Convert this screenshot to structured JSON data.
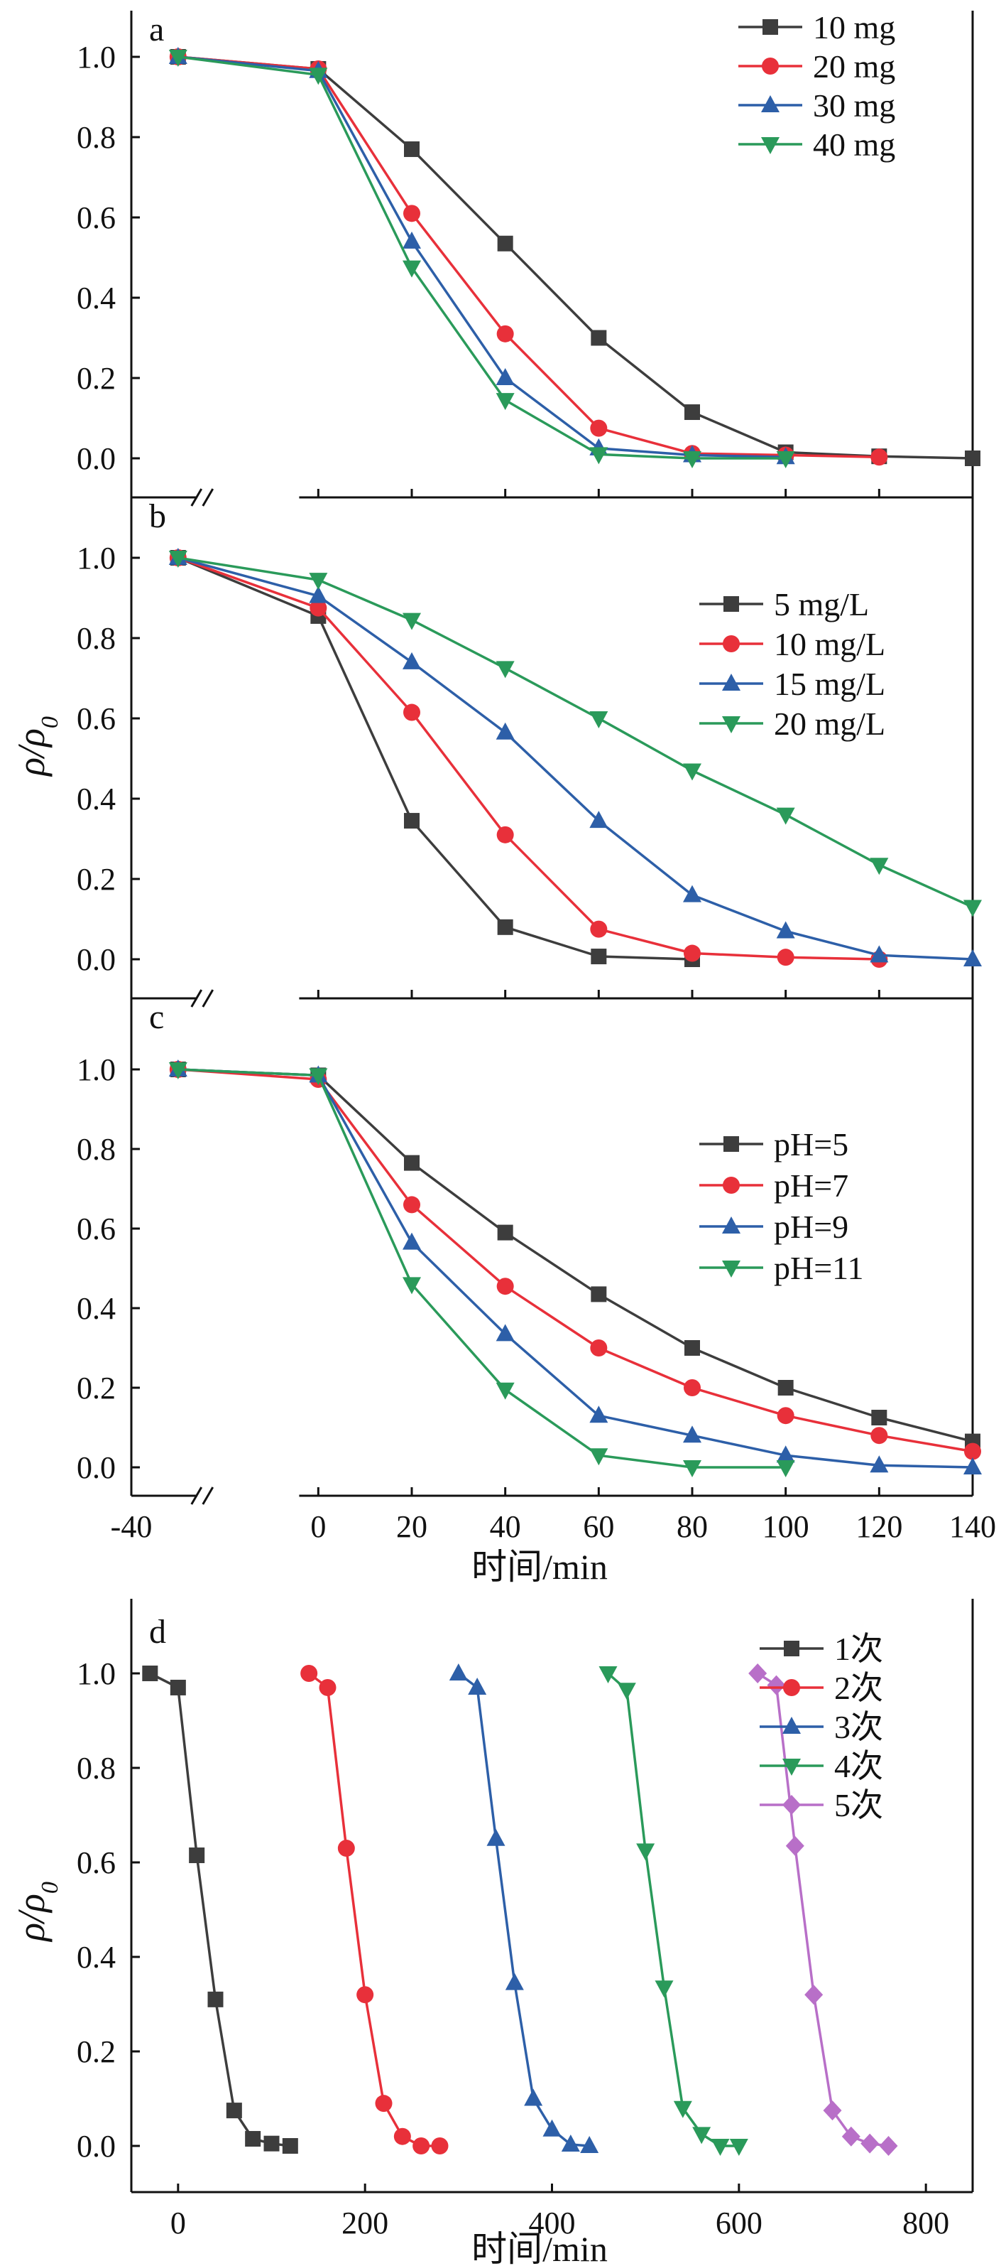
{
  "figure": {
    "shared_xlabel": "时间/min",
    "ylabel_bd": "ρ/ρ",
    "ylabel_subscript": "0"
  },
  "chart_data": [
    {
      "panel": "a",
      "type": "line",
      "ylim": [
        -0.1,
        1.1
      ],
      "xlim": [
        -40,
        140
      ],
      "x_axis_break": [
        -25,
        -5
      ],
      "y_ticks": [
        "0.0",
        "0.2",
        "0.4",
        "0.6",
        "0.8",
        "1.0"
      ],
      "legend_position": "top-right",
      "series": [
        {
          "name": "10 mg",
          "color": "#3d3d3d",
          "marker": "square",
          "x": [
            -30,
            0,
            20,
            40,
            60,
            80,
            100,
            120,
            140
          ],
          "y": [
            1.0,
            0.97,
            0.77,
            0.535,
            0.3,
            0.115,
            0.015,
            0.005,
            0.0
          ]
        },
        {
          "name": "20 mg",
          "color": "#e8303a",
          "marker": "circle",
          "x": [
            -30,
            0,
            20,
            40,
            60,
            80,
            100,
            120
          ],
          "y": [
            1.0,
            0.97,
            0.61,
            0.31,
            0.075,
            0.012,
            0.008,
            0.003
          ]
        },
        {
          "name": "30 mg",
          "color": "#2d5fa8",
          "marker": "triangle-up",
          "x": [
            -30,
            0,
            20,
            40,
            60,
            80,
            100
          ],
          "y": [
            1.0,
            0.965,
            0.54,
            0.2,
            0.025,
            0.008,
            0.003
          ]
        },
        {
          "name": "40 mg",
          "color": "#2a9a5a",
          "marker": "triangle-down",
          "x": [
            -30,
            0,
            20,
            40,
            60,
            80,
            100
          ],
          "y": [
            1.0,
            0.955,
            0.475,
            0.145,
            0.01,
            0.0,
            0.0
          ]
        }
      ]
    },
    {
      "panel": "b",
      "type": "line",
      "ylim": [
        -0.1,
        1.1
      ],
      "xlim": [
        -40,
        140
      ],
      "x_axis_break": [
        -25,
        -5
      ],
      "y_ticks": [
        "0.0",
        "0.2",
        "0.4",
        "0.6",
        "0.8",
        "1.0"
      ],
      "legend_position": "right",
      "series": [
        {
          "name": "5 mg/L",
          "color": "#3d3d3d",
          "marker": "square",
          "x": [
            -30,
            0,
            20,
            40,
            60,
            80
          ],
          "y": [
            1.0,
            0.855,
            0.345,
            0.08,
            0.007,
            0.0
          ]
        },
        {
          "name": "10 mg/L",
          "color": "#e8303a",
          "marker": "circle",
          "x": [
            -30,
            0,
            20,
            40,
            60,
            80,
            100,
            120
          ],
          "y": [
            1.0,
            0.875,
            0.615,
            0.31,
            0.075,
            0.015,
            0.005,
            0.0
          ]
        },
        {
          "name": "15 mg/L",
          "color": "#2d5fa8",
          "marker": "triangle-up",
          "x": [
            -30,
            0,
            20,
            40,
            60,
            80,
            100,
            120,
            140
          ],
          "y": [
            1.0,
            0.905,
            0.74,
            0.565,
            0.345,
            0.16,
            0.07,
            0.01,
            0.0
          ]
        },
        {
          "name": "20 mg/L",
          "color": "#2a9a5a",
          "marker": "triangle-down",
          "x": [
            -30,
            0,
            20,
            40,
            60,
            80,
            100,
            120,
            140
          ],
          "y": [
            1.0,
            0.945,
            0.845,
            0.725,
            0.6,
            0.47,
            0.36,
            0.235,
            0.13
          ]
        }
      ]
    },
    {
      "panel": "c",
      "type": "line",
      "ylim": [
        -0.1,
        1.1
      ],
      "xlim": [
        -40,
        140
      ],
      "x_axis_break": [
        -25,
        -5
      ],
      "x_ticks": [
        "-40",
        "0",
        "20",
        "40",
        "60",
        "80",
        "100",
        "120",
        "140"
      ],
      "y_ticks": [
        "0.0",
        "0.2",
        "0.4",
        "0.6",
        "0.8",
        "1.0"
      ],
      "legend_position": "right",
      "series": [
        {
          "name": "pH=5",
          "color": "#3d3d3d",
          "marker": "square",
          "x": [
            -30,
            0,
            20,
            40,
            60,
            80,
            100,
            120,
            140
          ],
          "y": [
            1.0,
            0.985,
            0.765,
            0.59,
            0.435,
            0.3,
            0.2,
            0.125,
            0.065
          ]
        },
        {
          "name": "pH=7",
          "color": "#e8303a",
          "marker": "circle",
          "x": [
            -30,
            0,
            20,
            40,
            60,
            80,
            100,
            120,
            140
          ],
          "y": [
            1.0,
            0.975,
            0.66,
            0.455,
            0.3,
            0.2,
            0.13,
            0.08,
            0.04
          ]
        },
        {
          "name": "pH=9",
          "color": "#2d5fa8",
          "marker": "triangle-up",
          "x": [
            -30,
            0,
            20,
            40,
            60,
            80,
            100,
            120,
            140
          ],
          "y": [
            1.0,
            0.985,
            0.565,
            0.335,
            0.13,
            0.08,
            0.03,
            0.005,
            0.0
          ]
        },
        {
          "name": "pH=11",
          "color": "#2a9a5a",
          "marker": "triangle-down",
          "x": [
            -30,
            0,
            20,
            40,
            60,
            80,
            100
          ],
          "y": [
            1.0,
            0.985,
            0.46,
            0.195,
            0.03,
            0.0,
            0.0
          ]
        }
      ]
    },
    {
      "panel": "d",
      "type": "line",
      "ylim": [
        -0.1,
        1.1
      ],
      "xlim": [
        -50,
        850
      ],
      "x_ticks": [
        "0",
        "200",
        "400",
        "600",
        "800"
      ],
      "y_ticks": [
        "0.0",
        "0.2",
        "0.4",
        "0.6",
        "0.8",
        "1.0"
      ],
      "legend_position": "top-right",
      "series": [
        {
          "name": "1次",
          "color": "#3d3d3d",
          "marker": "square",
          "x": [
            -30,
            0,
            20,
            40,
            60,
            80,
            100,
            120
          ],
          "y": [
            1.0,
            0.97,
            0.615,
            0.31,
            0.075,
            0.015,
            0.005,
            0.0
          ]
        },
        {
          "name": "2次",
          "color": "#e8303a",
          "marker": "circle",
          "x": [
            140,
            160,
            180,
            200,
            220,
            240,
            260,
            280
          ],
          "y": [
            1.0,
            0.97,
            0.63,
            0.32,
            0.09,
            0.02,
            0.0,
            0.0
          ]
        },
        {
          "name": "3次",
          "color": "#2d5fa8",
          "marker": "triangle-up",
          "x": [
            300,
            320,
            340,
            360,
            380,
            400,
            420,
            440
          ],
          "y": [
            1.0,
            0.97,
            0.65,
            0.345,
            0.1,
            0.035,
            0.003,
            0.0
          ]
        },
        {
          "name": "4次",
          "color": "#2a9a5a",
          "marker": "triangle-down",
          "x": [
            460,
            480,
            500,
            520,
            540,
            560,
            580,
            600
          ],
          "y": [
            1.0,
            0.965,
            0.625,
            0.335,
            0.08,
            0.025,
            0.0,
            0.0
          ]
        },
        {
          "name": "5次",
          "color": "#b86fc8",
          "marker": "diamond",
          "x": [
            620,
            640,
            660,
            680,
            700,
            720,
            740,
            760
          ],
          "y": [
            1.0,
            0.975,
            0.635,
            0.32,
            0.075,
            0.02,
            0.005,
            0.0
          ]
        }
      ]
    }
  ]
}
